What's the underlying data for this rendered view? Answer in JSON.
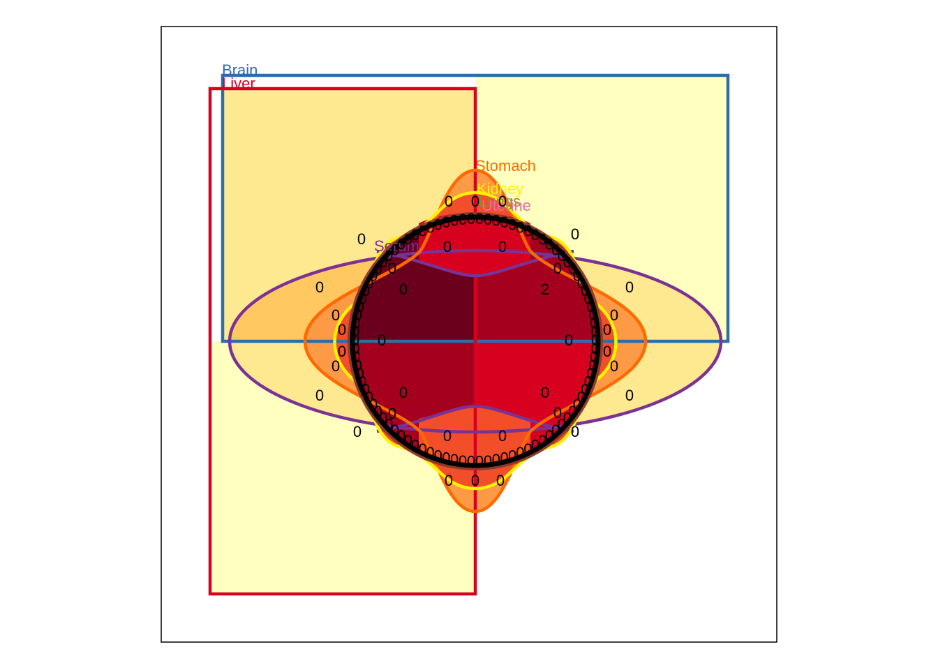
{
  "diagram": {
    "type": "venn",
    "sets": [
      {
        "name": "Brain",
        "color": "#2F6CA8"
      },
      {
        "name": "Liver",
        "color": "#D7001F"
      },
      {
        "name": "Stomach",
        "color": "#FF6A00"
      },
      {
        "name": "Kidney",
        "color": "#FFF200"
      },
      {
        "name": "Lungs",
        "color": "#8C8C2C"
      },
      {
        "name": "Uterine",
        "color": "#EE6AA7"
      },
      {
        "name": "Serum",
        "color": "#7B3294"
      }
    ],
    "counts": [
      "0",
      "0",
      "0",
      "0",
      "0",
      "0",
      "0",
      "0",
      "2",
      "0",
      "0",
      "0",
      "0",
      "0",
      "0",
      "0",
      "0",
      "0",
      "0",
      "0",
      "0",
      "0",
      "0",
      "0",
      "0",
      "0",
      "0",
      "0",
      "0",
      "0",
      "0",
      "0",
      "0",
      "0",
      "0",
      "0"
    ],
    "fill_palette": [
      "#FFFFC0",
      "#FFE990",
      "#FFC861",
      "#FD9A45",
      "#F24E2A",
      "#D7001F",
      "#A5001D",
      "#6B001D"
    ]
  }
}
